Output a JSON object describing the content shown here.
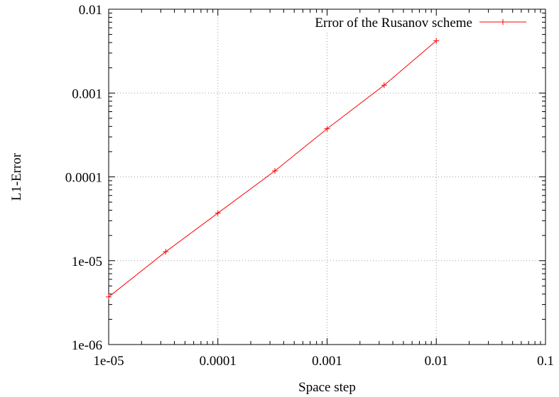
{
  "chart_data": {
    "type": "line",
    "title": "",
    "xlabel": "Space step",
    "ylabel": "L1-Error",
    "xscale": "log",
    "yscale": "log",
    "xlim": [
      1e-05,
      0.1
    ],
    "ylim": [
      1e-06,
      0.01
    ],
    "x_ticks": [
      1e-05,
      0.0001,
      0.001,
      0.01,
      0.1
    ],
    "x_tick_labels": [
      "1e-05",
      "0.0001",
      "0.001",
      "0.01",
      "0.1"
    ],
    "y_ticks": [
      1e-06,
      1e-05,
      0.0001,
      0.001,
      0.01
    ],
    "y_tick_labels": [
      "1e-06",
      "1e-05",
      "0.0001",
      "0.001",
      "0.01"
    ],
    "grid": true,
    "legend_position": "top-right",
    "series": [
      {
        "name": "Error of the Rusanov scheme",
        "color": "#ff0000",
        "marker": "plus",
        "x": [
          1e-05,
          3.33e-05,
          0.0001,
          0.000333,
          0.001,
          0.00333,
          0.01
        ],
        "y": [
          3.7e-06,
          1.28e-05,
          3.7e-05,
          0.000118,
          0.000375,
          0.00124,
          0.0042
        ]
      }
    ]
  }
}
